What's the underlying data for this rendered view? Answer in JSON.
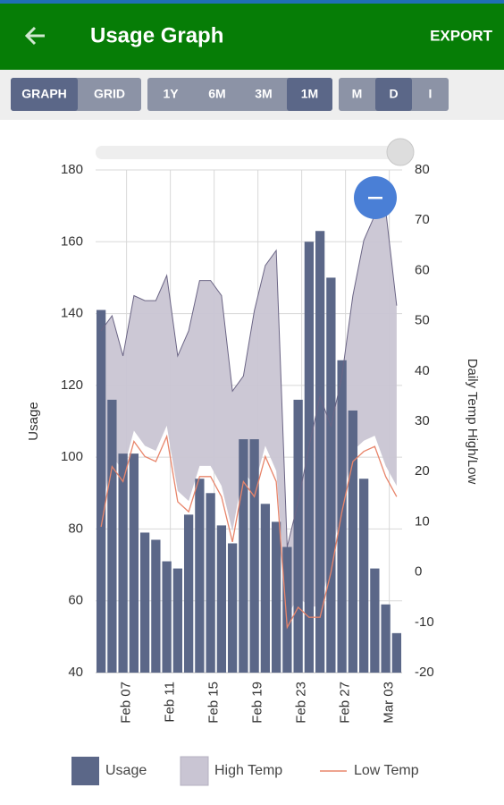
{
  "header": {
    "title": "Usage Graph",
    "action": "EXPORT"
  },
  "toolbar": {
    "groups": [
      [
        "GRAPH",
        "GRID"
      ],
      [
        "1Y",
        "6M",
        "3M",
        "1M"
      ],
      [
        "M",
        "D",
        "I"
      ]
    ],
    "selected": [
      0,
      3,
      1
    ]
  },
  "chart_data": {
    "type": "bar",
    "categories": [
      null,
      null,
      "Feb 07",
      null,
      null,
      null,
      "Feb 11",
      null,
      null,
      null,
      "Feb 15",
      null,
      null,
      null,
      "Feb 19",
      null,
      null,
      null,
      "Feb 23",
      null,
      null,
      null,
      "Feb 27",
      null,
      null,
      null,
      "Mar 03",
      null
    ],
    "ylabel": "Usage",
    "y2label": "Daily Temp High/Low",
    "ylim": [
      40,
      180
    ],
    "yticks": [
      40,
      60,
      80,
      100,
      120,
      140,
      160,
      180
    ],
    "y2lim": [
      -20,
      80
    ],
    "y2ticks": [
      -20,
      -10,
      0,
      10,
      20,
      30,
      40,
      50,
      60,
      70,
      80
    ],
    "grid": true,
    "series": [
      {
        "name": "Usage",
        "type": "bar",
        "color": "#5b6788",
        "values": [
          141,
          116,
          101,
          101,
          79,
          77,
          71,
          69,
          84,
          94,
          90,
          81,
          76,
          105,
          105,
          87,
          82,
          75,
          116,
          160,
          163,
          150,
          127,
          113,
          94,
          69,
          59,
          51
        ]
      },
      {
        "name": "High Temp",
        "type": "area",
        "axis": "y2",
        "color": "#c9c5d3",
        "values": [
          48,
          51,
          43,
          55,
          54,
          54,
          59,
          43,
          48,
          58,
          58,
          55,
          36,
          39,
          52,
          61,
          64,
          5,
          14,
          25,
          35,
          29,
          39,
          55,
          66,
          71,
          72,
          53
        ]
      },
      {
        "name": "Low Temp",
        "type": "line",
        "axis": "y2",
        "color": "#e8856b",
        "values": [
          9,
          21,
          18,
          26,
          23,
          22,
          27,
          14,
          12,
          19,
          19,
          15,
          6,
          18,
          15,
          23,
          18,
          -11,
          -7,
          -9,
          -9,
          0,
          12,
          22,
          24,
          25,
          19,
          15
        ]
      }
    ]
  }
}
